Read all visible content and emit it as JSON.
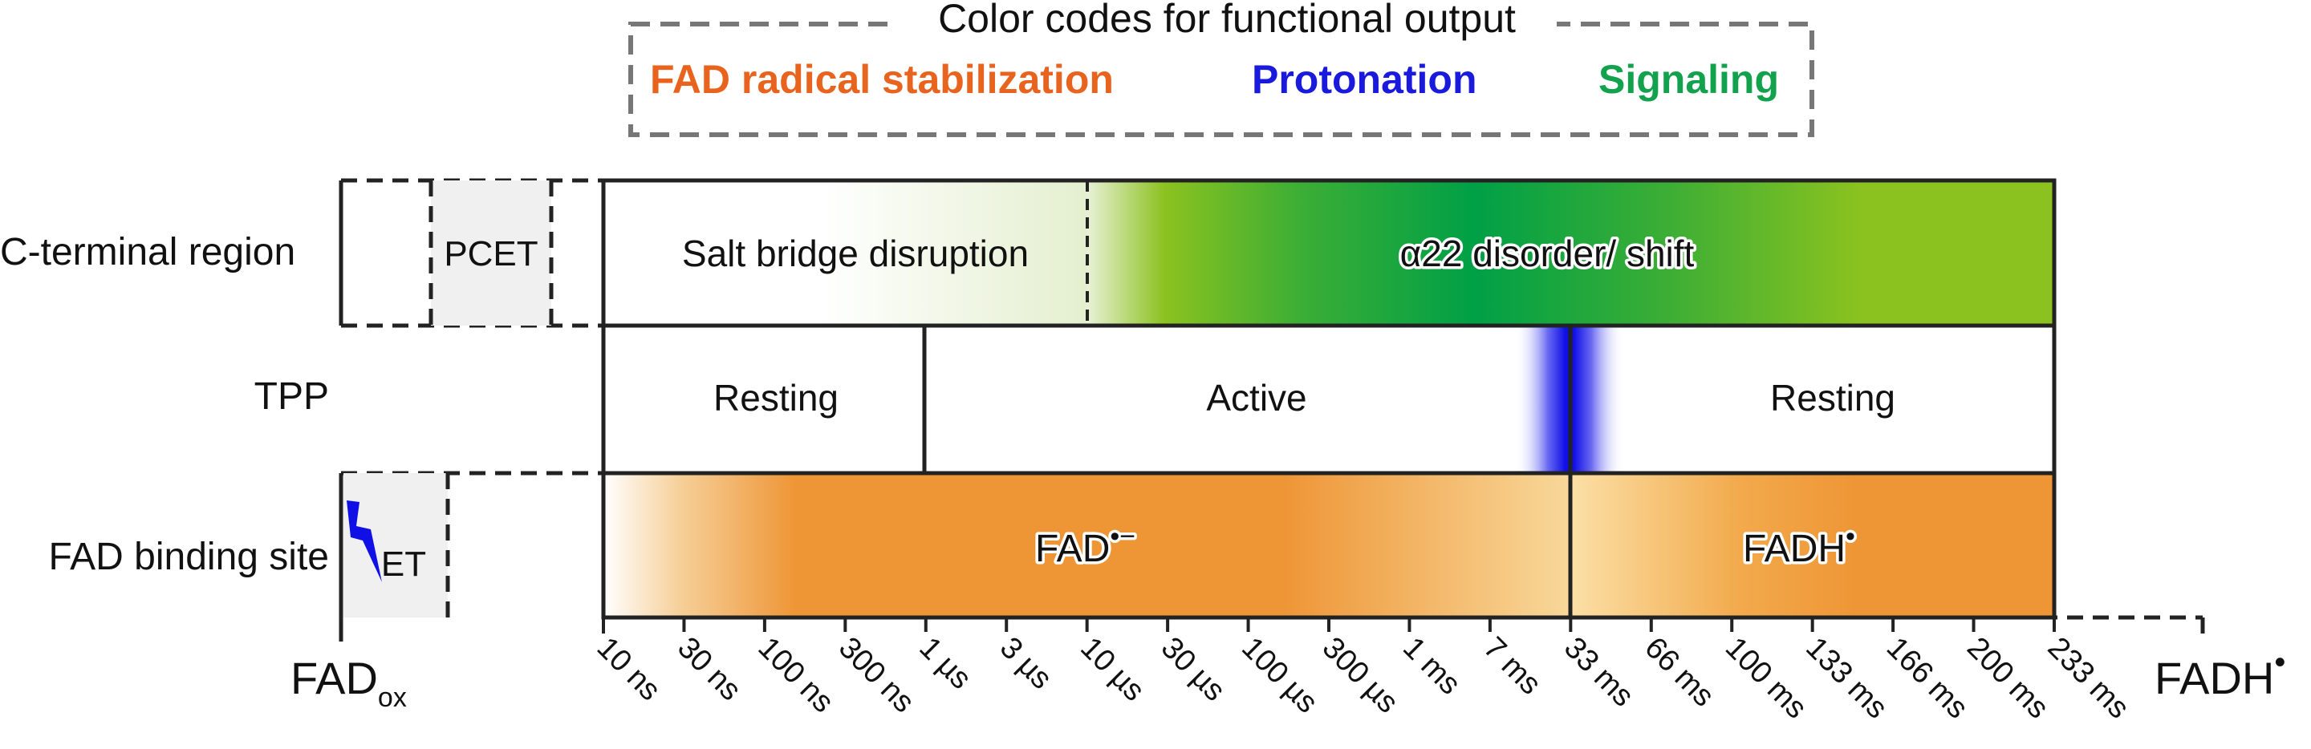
{
  "legend": {
    "title": "Color codes for functional output",
    "items": [
      {
        "label": "FAD radical stabilization",
        "color": "#e8641e"
      },
      {
        "label": "Protonation",
        "color": "#1a1adc"
      },
      {
        "label": "Signaling",
        "color": "#12a14c"
      }
    ]
  },
  "rows": {
    "c_terminal": "C-terminal region",
    "tpp": "TPP",
    "fad_site": "FAD binding site"
  },
  "boxes": {
    "pcet": "PCET",
    "et": "ET"
  },
  "bars": {
    "salt_bridge": "Salt bridge disruption",
    "alpha22": "α22 disorder/ shift",
    "resting_1": "Resting",
    "active": "Active",
    "resting_2": "Resting",
    "fad_anion_base": "FAD",
    "fad_anion_sup": "•−",
    "fadh_base": "FADH",
    "fadh_sup": "•"
  },
  "axis": {
    "start_base": "FAD",
    "start_sub": "ox",
    "end_base": "FADH",
    "end_sup": "•",
    "ticks": [
      "10 ns",
      "30 ns",
      "100 ns",
      "300 ns",
      "1 µs",
      "3 µs",
      "10 µs",
      "30 µs",
      "100 µs",
      "300 µs",
      "1 ms",
      "7 ms",
      "33 ms",
      "66 ms",
      "100 ms",
      "133 ms",
      "166 ms",
      "200 ms",
      "233 ms"
    ]
  },
  "colors": {
    "orange": "#ee9535",
    "orange_light": "#f7cf8a",
    "green_light": "#8bc21f",
    "green_dark": "#00a046",
    "blue": "#1010e6",
    "box_gray": "#f0f0f0"
  },
  "icons": {
    "et_bolt": "lightning-bolt-icon"
  }
}
